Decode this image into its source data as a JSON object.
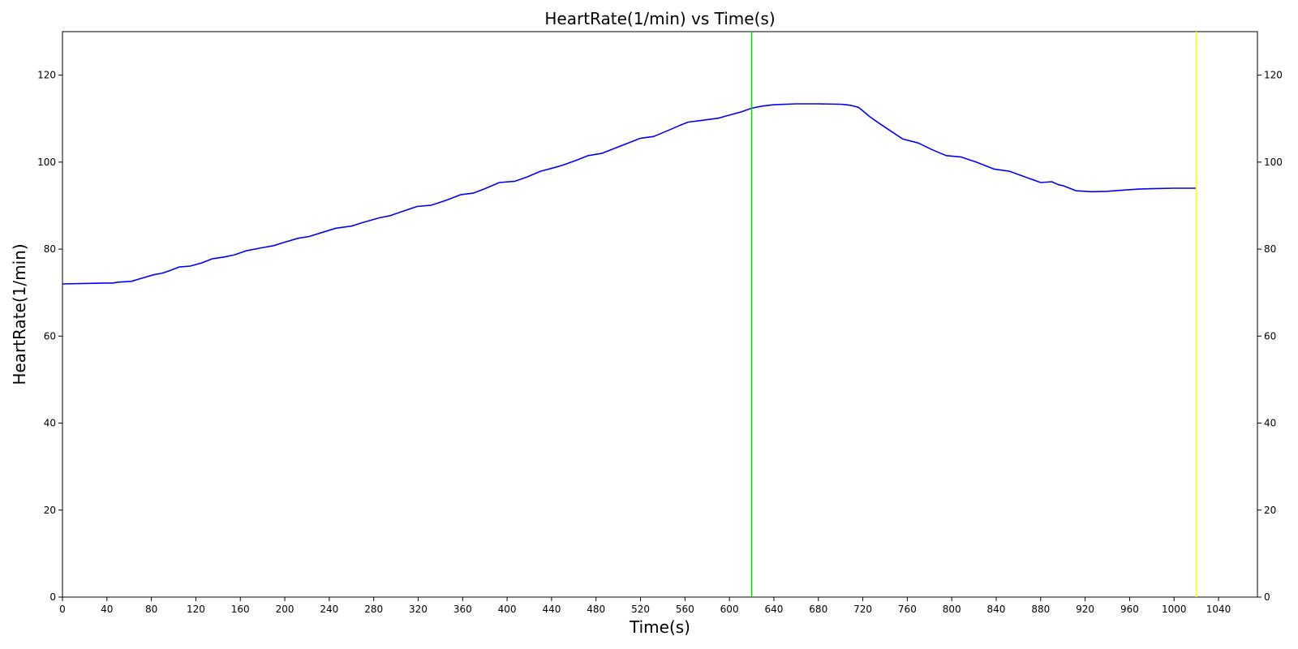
{
  "chart_data": {
    "type": "line",
    "title": "HeartRate(1/min) vs Time(s)",
    "xlabel": "Time(s)",
    "ylabel": "HeartRate(1/min)",
    "xlim": [
      0,
      1075
    ],
    "ylim": [
      0,
      130
    ],
    "x_ticks": [
      0,
      40,
      80,
      120,
      160,
      200,
      240,
      280,
      320,
      360,
      400,
      440,
      480,
      520,
      560,
      600,
      640,
      680,
      720,
      760,
      800,
      840,
      880,
      920,
      960,
      1000,
      1040
    ],
    "y_ticks": [
      0,
      20,
      40,
      60,
      80,
      100,
      120
    ],
    "grid": false,
    "right_axis_mirrored": true,
    "series": [
      {
        "color": "#0000ff",
        "x": [
          0,
          20,
          40,
          45,
          50,
          62,
          70,
          82,
          90,
          96,
          105,
          115,
          125,
          135,
          146,
          155,
          165,
          179,
          190,
          200,
          212,
          222,
          232,
          246,
          260,
          270,
          285,
          295,
          305,
          319,
          332,
          345,
          358,
          370,
          380,
          393,
          407,
          418,
          430,
          442,
          450,
          462,
          473,
          485,
          500,
          510,
          520,
          532,
          545,
          555,
          563,
          575,
          590,
          600,
          610,
          620,
          630,
          640,
          660,
          680,
          700,
          705,
          710,
          716,
          720,
          726,
          736,
          746,
          756,
          770,
          782,
          795,
          808,
          822,
          838,
          852,
          866,
          880,
          890,
          896,
          900,
          912,
          926,
          940,
          956,
          968,
          980,
          1000,
          1020
        ],
        "y": [
          72.0,
          72.1,
          72.2,
          72.2,
          72.4,
          72.6,
          73.2,
          74.1,
          74.5,
          75.0,
          75.9,
          76.1,
          76.8,
          77.8,
          78.2,
          78.7,
          79.6,
          80.3,
          80.8,
          81.6,
          82.5,
          82.9,
          83.7,
          84.8,
          85.3,
          86.1,
          87.2,
          87.7,
          88.6,
          89.8,
          90.1,
          91.2,
          92.5,
          92.9,
          93.9,
          95.3,
          95.6,
          96.6,
          97.9,
          98.7,
          99.3,
          100.4,
          101.5,
          102.0,
          103.5,
          104.5,
          105.5,
          105.9,
          107.3,
          108.4,
          109.2,
          109.6,
          110.1,
          110.8,
          111.5,
          112.4,
          112.9,
          113.2,
          113.4,
          113.4,
          113.3,
          113.2,
          113.0,
          112.6,
          111.8,
          110.5,
          108.7,
          107.0,
          105.3,
          104.4,
          102.9,
          101.5,
          101.2,
          100.0,
          98.4,
          97.9,
          96.6,
          95.3,
          95.5,
          94.8,
          94.6,
          93.4,
          93.2,
          93.3,
          93.6,
          93.8,
          93.9,
          94.0,
          94.0
        ]
      }
    ],
    "vertical_lines": [
      {
        "x": 620,
        "color": "#00dd00"
      },
      {
        "x": 1020,
        "color": "#ffff00"
      }
    ]
  }
}
